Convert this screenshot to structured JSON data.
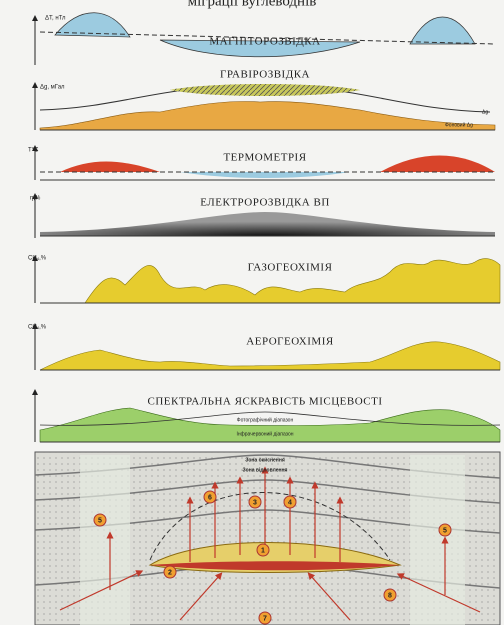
{
  "header": {
    "title": "міграції вуглеводнів"
  },
  "panels": [
    {
      "label": "МАГНІТОРОЗВІДКА",
      "axis_label": "ΔT, нТл"
    },
    {
      "label": "ГРАВІРОЗВІДКА",
      "axis_label": "Δg, мГал",
      "curve_labels": [
        "Δg",
        "Фоновий Δg"
      ]
    },
    {
      "label": "ТЕРМОМЕТРІЯ",
      "axis_label": "T°C"
    },
    {
      "label": "ЕЛЕКТРОРОЗВІДКА ВП",
      "axis_label": "η,%"
    },
    {
      "label": "ГАЗОГЕОХІМІЯ",
      "axis_label": "CH₄,%"
    },
    {
      "label": "АЕРОГЕОХІМІЯ",
      "axis_label": "CH₄,%"
    },
    {
      "label": "СПЕКТРАЛЬНА ЯСКРАВІСТЬ МІСЦЕВОСТІ",
      "curve_labels": [
        "Фотографічний діапазон",
        "Інфрачервоний діапазон"
      ]
    }
  ],
  "section": {
    "zones": [
      "Зона окиснення",
      "Зона відновлення"
    ],
    "markers": [
      "1",
      "2",
      "3",
      "4",
      "5",
      "5",
      "6",
      "7",
      "8"
    ]
  }
}
